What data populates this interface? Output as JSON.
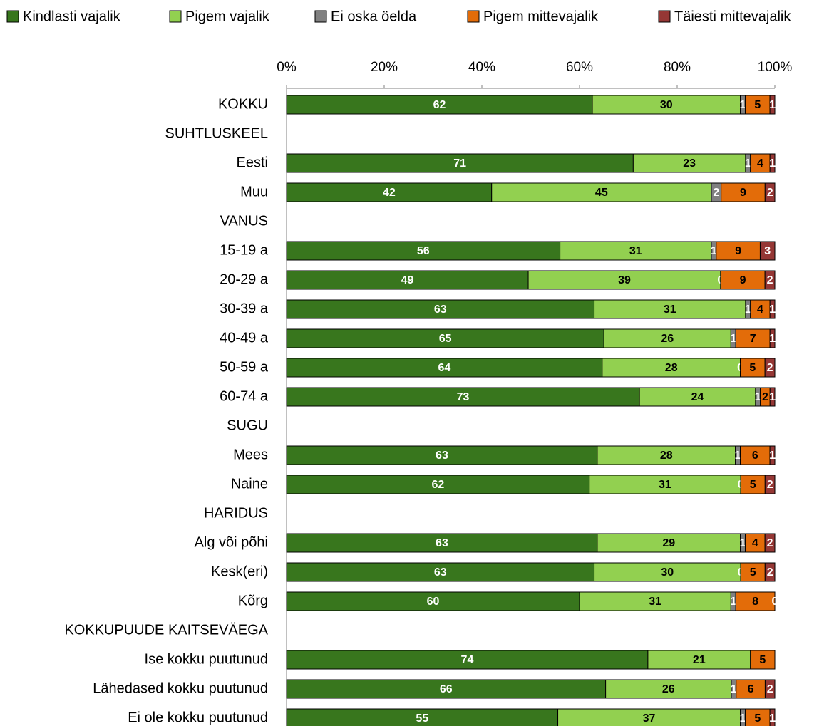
{
  "chart_data": {
    "type": "bar",
    "orientation": "horizontal",
    "stacked": "percent",
    "xlim": [
      0,
      100
    ],
    "x_ticks": [
      "0%",
      "20%",
      "40%",
      "60%",
      "80%",
      "100%"
    ],
    "x_tick_values": [
      0,
      20,
      40,
      60,
      80,
      100
    ],
    "grid": false,
    "legend_position": "top",
    "legend": [
      {
        "name": "Kindlasti vajalik",
        "color": "#38761d"
      },
      {
        "name": "Pigem vajalik",
        "color": "#92d050"
      },
      {
        "name": "Ei oska öelda",
        "color": "#808080"
      },
      {
        "name": "Pigem mittevajalik",
        "color": "#e36c09"
      },
      {
        "name": "Täiesti mittevajalik",
        "color": "#953735"
      }
    ],
    "label_colors": [
      "#ffffff",
      "#000000",
      "#ffffff",
      "#000000",
      "#ffffff"
    ],
    "rows": [
      {
        "label": "KOKKU",
        "values": [
          62,
          30,
          1,
          5,
          1
        ]
      },
      {
        "label": "SUHTLUSKEEL",
        "values": null
      },
      {
        "label": "Eesti",
        "values": [
          71,
          23,
          1,
          4,
          1
        ]
      },
      {
        "label": "Muu",
        "values": [
          42,
          45,
          2,
          9,
          2
        ]
      },
      {
        "label": "VANUS",
        "values": null
      },
      {
        "label": "15-19 a",
        "values": [
          56,
          31,
          1,
          9,
          3
        ]
      },
      {
        "label": "20-29 a",
        "values": [
          49,
          39,
          0,
          9,
          2
        ]
      },
      {
        "label": "30-39 a",
        "values": [
          63,
          31,
          1,
          4,
          1
        ]
      },
      {
        "label": "40-49 a",
        "values": [
          65,
          26,
          1,
          7,
          1
        ]
      },
      {
        "label": "50-59 a",
        "values": [
          64,
          28,
          0,
          5,
          2
        ]
      },
      {
        "label": "60-74 a",
        "values": [
          73,
          24,
          1,
          2,
          1
        ]
      },
      {
        "label": "SUGU",
        "values": null
      },
      {
        "label": "Mees",
        "values": [
          63,
          28,
          1,
          6,
          1
        ]
      },
      {
        "label": "Naine",
        "values": [
          62,
          31,
          0,
          5,
          2
        ]
      },
      {
        "label": "HARIDUS",
        "values": null
      },
      {
        "label": "Alg või põhi",
        "values": [
          63,
          29,
          1,
          4,
          2
        ]
      },
      {
        "label": "Kesk(eri)",
        "values": [
          63,
          30,
          0,
          5,
          2
        ]
      },
      {
        "label": "Kõrg",
        "values": [
          60,
          31,
          1,
          8,
          0
        ]
      },
      {
        "label": "KOKKUPUUDE KAITSEVÄEGA",
        "values": null
      },
      {
        "label": "Ise kokku puutunud",
        "values": [
          74,
          21,
          0,
          5,
          0
        ]
      },
      {
        "label": "Lähedased kokku puutunud",
        "values": [
          66,
          26,
          1,
          6,
          2
        ]
      },
      {
        "label": "Ei ole kokku puutunud",
        "values": [
          55,
          37,
          1,
          5,
          1
        ]
      }
    ],
    "hidden_labels": [
      {
        "row": "Ise kokku puutunud",
        "series": [
          2,
          4
        ]
      }
    ]
  }
}
